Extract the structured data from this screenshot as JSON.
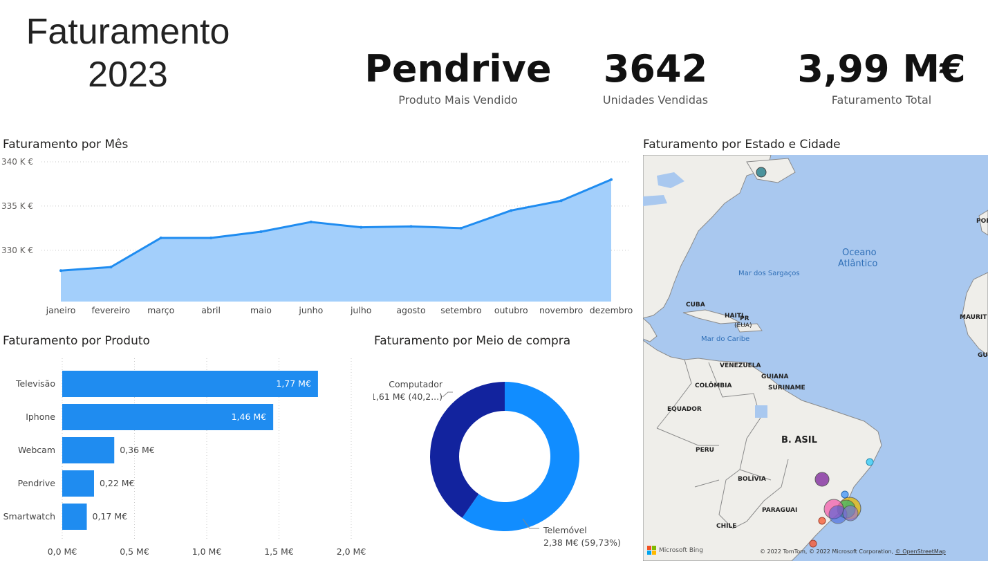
{
  "header": {
    "title_line1": "Faturamento",
    "title_line2": "2023"
  },
  "kpis": [
    {
      "value": "Pendrive",
      "label": "Produto Mais Vendido"
    },
    {
      "value": "3642",
      "label": "Unidades Vendidas"
    },
    {
      "value": "3,99 M€",
      "label": "Faturamento Total"
    }
  ],
  "visuals": {
    "monthly_title": "Faturamento por Mês",
    "product_title": "Faturamento por Produto",
    "channel_title": "Faturamento por Meio de compra",
    "map_title": "Faturamento por Estado e Cidade"
  },
  "map": {
    "labels": [
      "Oceano",
      "Atlântico",
      "Mar dos Sargaços",
      "Mar do Caribe",
      "CUBA",
      "HAITI",
      "PR",
      "(EUA)",
      "VENEZUELA",
      "COLÔMBIA",
      "GUIANA",
      "SURINAME",
      "EQUADOR",
      "B. ASIL",
      "PERU",
      "BOLÍVIA",
      "PARAGUAI",
      "CHILE",
      "POR",
      "MAURIT",
      "GU"
    ],
    "bing": "Microsoft Bing",
    "copyright": "© 2022 TomTom, © 2022 Microsoft Corporation,",
    "osm": "© OpenStreetMap"
  },
  "chart_data": [
    {
      "type": "area",
      "title": "Faturamento por Mês",
      "categories": [
        "janeiro",
        "fevereiro",
        "março",
        "abril",
        "maio",
        "junho",
        "julho",
        "agosto",
        "setembro",
        "outubro",
        "novembro",
        "dezembro"
      ],
      "values": [
        327.7,
        328.1,
        331.4,
        331.4,
        332.1,
        333.2,
        332.6,
        332.7,
        332.5,
        334.5,
        335.6,
        338.0
      ],
      "unit": "K €",
      "ylim": [
        324.2,
        340
      ],
      "yticks": [
        330,
        335,
        340
      ],
      "ytick_labels": [
        "330 K €",
        "335 K €",
        "340 K €"
      ],
      "grid": true,
      "colors": {
        "line": "#1f8cf0",
        "fill": "#a3cffb"
      }
    },
    {
      "type": "bar",
      "orientation": "horizontal",
      "title": "Faturamento por Produto",
      "categories": [
        "Televisão",
        "Iphone",
        "Webcam",
        "Pendrive",
        "Smartwatch"
      ],
      "values": [
        1.77,
        1.46,
        0.36,
        0.22,
        0.17
      ],
      "data_labels": [
        "1,77 M€",
        "1,46 M€",
        "0,36 M€",
        "0,22 M€",
        "0,17 M€"
      ],
      "xlim": [
        0,
        2.0
      ],
      "xticks": [
        0,
        0.5,
        1.0,
        1.5,
        2.0
      ],
      "xtick_labels": [
        "0,0 M€",
        "0,5 M€",
        "1,0 M€",
        "1,5 M€",
        "2,0 M€"
      ],
      "grid": true,
      "color": "#1f8cf0"
    },
    {
      "type": "pie",
      "donut": true,
      "title": "Faturamento por Meio de compra",
      "slices": [
        {
          "name": "Telemóvel",
          "value": 2.38,
          "percent": 59.73,
          "label": "2,38 M€ (59,73%)",
          "color": "#118dff"
        },
        {
          "name": "Computador",
          "value": 1.61,
          "percent": 40.27,
          "label": "1,61 M€ (40,2...)",
          "color": "#12239e"
        }
      ]
    }
  ]
}
